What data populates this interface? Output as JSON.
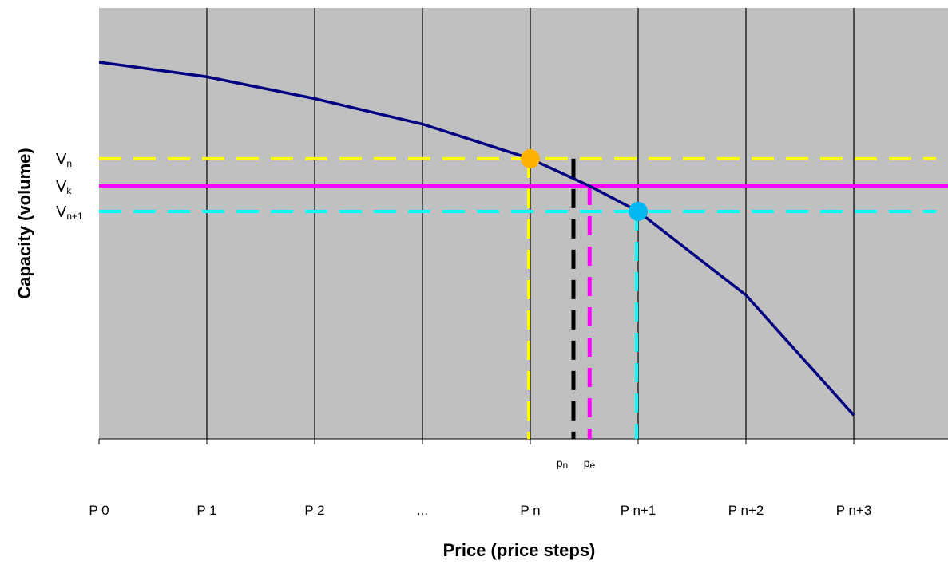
{
  "chart_data": {
    "type": "line",
    "xlabel": "Price (price steps)",
    "ylabel": "Capacity (volume)",
    "x_ticks": [
      "P 0",
      "P 1",
      "P 2",
      "...",
      "P n",
      "P n+1",
      "P n+2",
      "P n+3"
    ],
    "y_markers": [
      {
        "base": "V",
        "sub": "n",
        "value": 0.735,
        "color": "#ffff00",
        "style": "dashed"
      },
      {
        "base": "V",
        "sub": "k",
        "value": 0.66,
        "color": "#ff00ff",
        "style": "solid"
      },
      {
        "base": "V",
        "sub": "n+1",
        "value": 0.59,
        "color": "#00ffff",
        "style": "dashed"
      }
    ],
    "price_markers": [
      {
        "base": "p",
        "sub": "n",
        "x": 4.4,
        "color": "#000000"
      },
      {
        "base": "p",
        "sub": "e",
        "x": 4.55,
        "color": "#ff00ff"
      }
    ],
    "curve": {
      "color": "#000080",
      "points": [
        [
          0,
          1.0
        ],
        [
          1,
          0.96
        ],
        [
          2,
          0.9
        ],
        [
          3,
          0.83
        ],
        [
          4,
          0.735
        ],
        [
          4.55,
          0.66
        ],
        [
          5,
          0.59
        ],
        [
          6,
          0.36
        ],
        [
          7,
          0.03
        ]
      ]
    },
    "highlight_points": [
      {
        "x": 4,
        "y": 0.735,
        "color": "#ffb100"
      },
      {
        "x": 5,
        "y": 0.59,
        "color": "#00b7f0"
      }
    ],
    "grid": true,
    "background": "#c0c0c0"
  }
}
